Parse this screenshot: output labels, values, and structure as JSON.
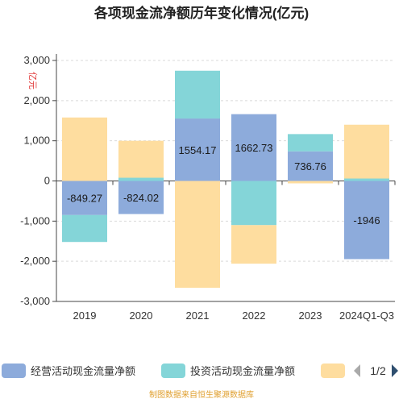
{
  "chart_data": {
    "type": "bar",
    "stacked": true,
    "title": "各项现金流净额历年变化情况(亿元)",
    "unit_label": "亿元",
    "categories": [
      "2019",
      "2020",
      "2021",
      "2022",
      "2023",
      "2024Q1-Q3"
    ],
    "series": [
      {
        "name": "经营活动现金流量净额",
        "color": "#8dabdb",
        "values": [
          -849.27,
          -824.02,
          1554.17,
          1662.73,
          736.76,
          -1946
        ]
      },
      {
        "name": "投资活动现金流量净额",
        "color": "#84d5d8",
        "values": [
          -670,
          80,
          1190,
          -1100,
          430,
          60
        ]
      },
      {
        "name": "",
        "color": "#fedd9f",
        "values": [
          1580,
          920,
          -2660,
          -960,
          -60,
          1340
        ]
      }
    ],
    "data_labels": [
      "-849.27",
      "-824.02",
      "1554.17",
      "1662.73",
      "736.76",
      "-1946"
    ],
    "ylim": [
      -3000,
      3000
    ],
    "yticks": [
      -3000,
      -2000,
      -1000,
      0,
      1000,
      2000,
      3000
    ],
    "ytick_labels": [
      "-3,000",
      "-2,000",
      "-1,000",
      "0",
      "1,000",
      "2,000",
      "3,000"
    ],
    "grid": true,
    "legend_position": "bottom"
  },
  "legend": {
    "page_indicator": "1/2"
  },
  "source_text": "制图数据来自恒生聚源数据库"
}
